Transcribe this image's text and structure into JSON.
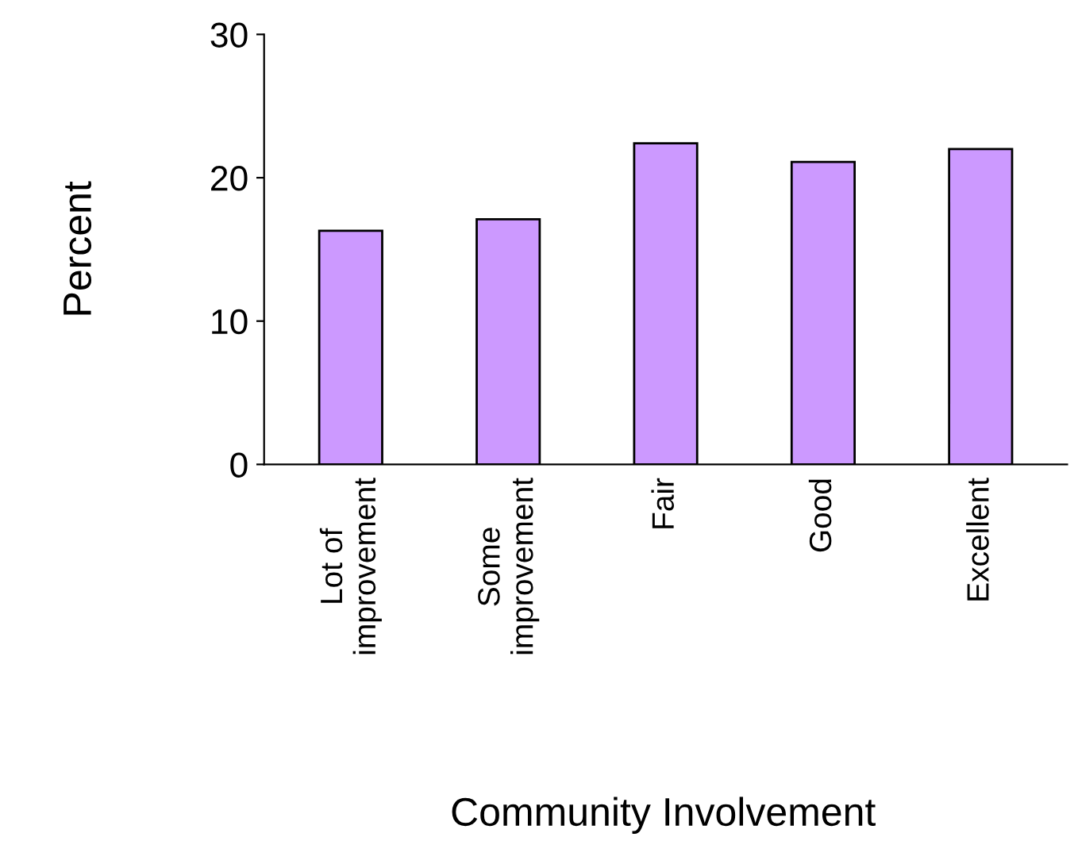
{
  "chart_data": {
    "type": "bar",
    "xlabel": "Community Involvement",
    "ylabel": "Percent",
    "categories": [
      "Lot of\nimprovement",
      "Some\nimprovement",
      "Fair",
      "Good",
      "Excellent"
    ],
    "values": [
      16.3,
      17.1,
      22.4,
      21.1,
      22.0
    ],
    "color": "#cc99ff",
    "ylim": [
      0,
      30
    ],
    "yticks": [
      0,
      10,
      20,
      30
    ],
    "grid": false
  }
}
